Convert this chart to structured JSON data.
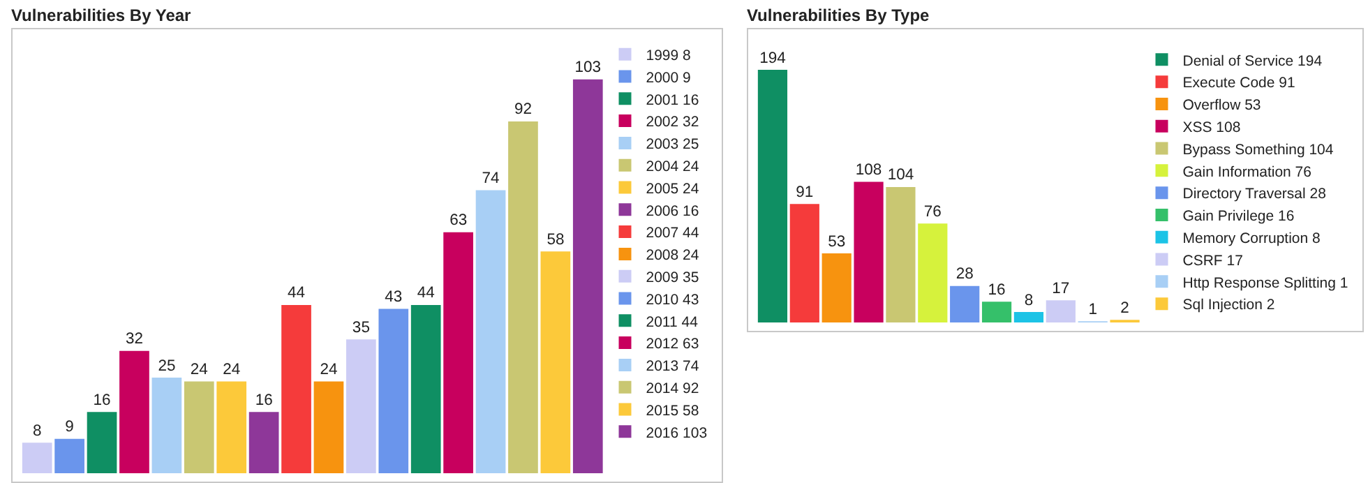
{
  "chart_data": [
    {
      "type": "bar",
      "title": "Vulnerabilities By Year",
      "categories": [
        null
      ],
      "series": [
        {
          "name": "1999 8",
          "color": "#ccccf5",
          "values": [
            8
          ]
        },
        {
          "name": "2000 9",
          "color": "#6a95ec",
          "values": [
            9
          ]
        },
        {
          "name": "2001 16",
          "color": "#0f8f63",
          "values": [
            16
          ]
        },
        {
          "name": "2002 32",
          "color": "#c8005e",
          "values": [
            32
          ]
        },
        {
          "name": "2003 25",
          "color": "#a8cff5",
          "values": [
            25
          ]
        },
        {
          "name": "2004 24",
          "color": "#c9c772",
          "values": [
            24
          ]
        },
        {
          "name": "2005 24",
          "color": "#fcc93a",
          "values": [
            24
          ]
        },
        {
          "name": "2006 16",
          "color": "#8e3799",
          "values": [
            16
          ]
        },
        {
          "name": "2007 44",
          "color": "#f53b3b",
          "values": [
            44
          ]
        },
        {
          "name": "2008 24",
          "color": "#f7930f",
          "values": [
            24
          ]
        },
        {
          "name": "2009 35",
          "color": "#ccccf5",
          "values": [
            35
          ]
        },
        {
          "name": "2010 43",
          "color": "#6a95ec",
          "values": [
            43
          ]
        },
        {
          "name": "2011 44",
          "color": "#0f8f63",
          "values": [
            44
          ]
        },
        {
          "name": "2012 63",
          "color": "#c8005e",
          "values": [
            63
          ]
        },
        {
          "name": "2013 74",
          "color": "#a8cff5",
          "values": [
            74
          ]
        },
        {
          "name": "2014 92",
          "color": "#c9c772",
          "values": [
            92
          ]
        },
        {
          "name": "2015 58",
          "color": "#fcc93a",
          "values": [
            58
          ]
        },
        {
          "name": "2016 103",
          "color": "#8e3799",
          "values": [
            103
          ]
        }
      ],
      "data_labels": true,
      "legend": "right",
      "tick_labels": false
    },
    {
      "type": "bar",
      "title": "Vulnerabilities By Type",
      "categories": [
        null
      ],
      "series": [
        {
          "name": "Denial of Service 194",
          "color": "#0f8f63",
          "values": [
            194
          ]
        },
        {
          "name": "Execute Code 91",
          "color": "#f53b3b",
          "values": [
            91
          ]
        },
        {
          "name": "Overflow 53",
          "color": "#f7930f",
          "values": [
            53
          ]
        },
        {
          "name": "XSS 108",
          "color": "#c8005e",
          "values": [
            108
          ]
        },
        {
          "name": "Bypass Something 104",
          "color": "#c9c772",
          "values": [
            104
          ]
        },
        {
          "name": "Gain Information 76",
          "color": "#d6f23c",
          "values": [
            76
          ]
        },
        {
          "name": "Directory Traversal 28",
          "color": "#6a95ec",
          "values": [
            28
          ]
        },
        {
          "name": "Gain Privilege 16",
          "color": "#35c06a",
          "values": [
            16
          ]
        },
        {
          "name": "Memory Corruption 8",
          "color": "#1cc3e6",
          "values": [
            8
          ]
        },
        {
          "name": "CSRF 17",
          "color": "#ccccf5",
          "values": [
            17
          ]
        },
        {
          "name": "Http Response Splitting 1",
          "color": "#a8cff5",
          "values": [
            1
          ]
        },
        {
          "name": "Sql Injection 2",
          "color": "#fcc93a",
          "values": [
            2
          ]
        }
      ],
      "data_labels": true,
      "legend": "right",
      "tick_labels": false
    }
  ]
}
